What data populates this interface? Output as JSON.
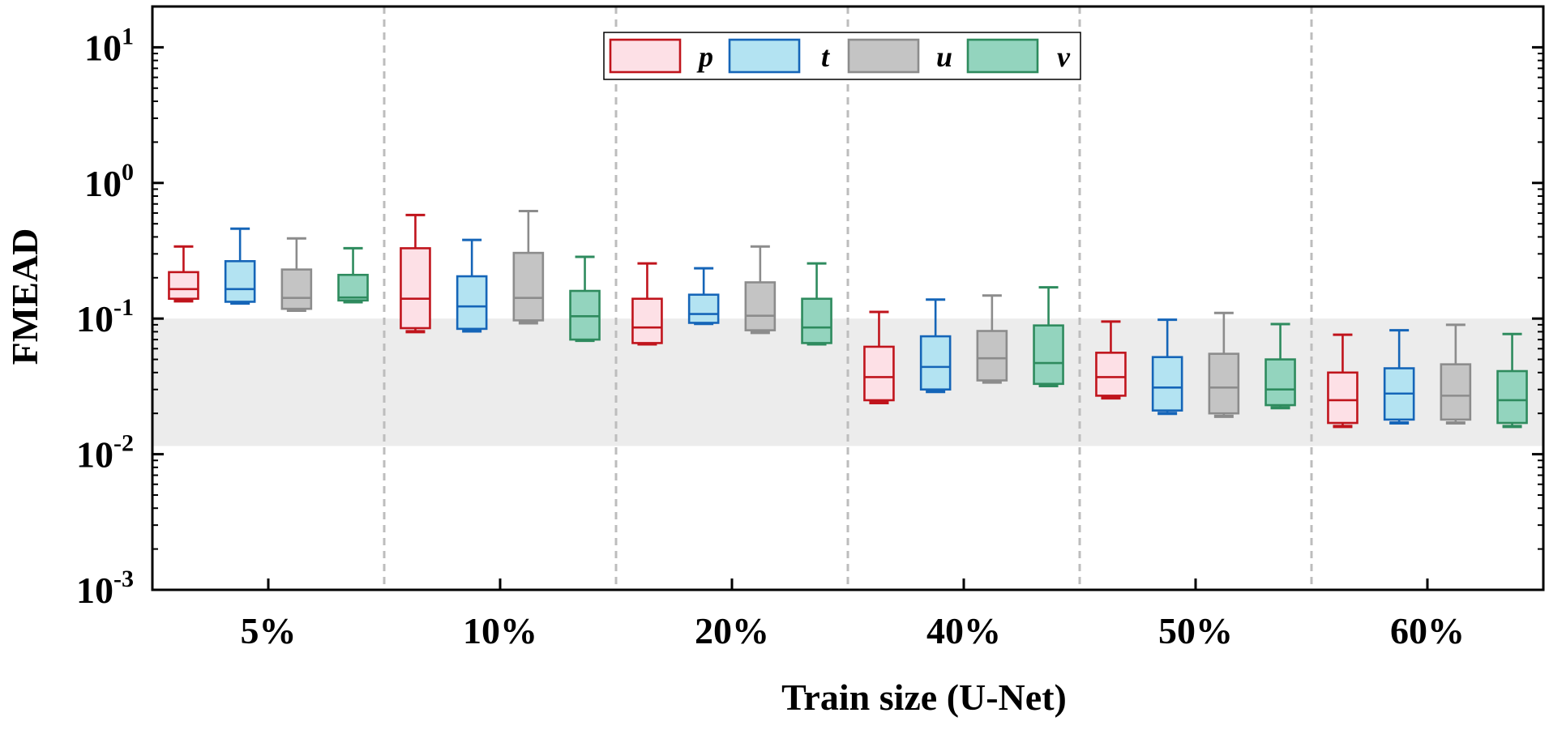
{
  "chart_data": {
    "type": "box",
    "xlabel": "Train size (U-Net)",
    "ylabel": "FMEAD",
    "yscale": "log",
    "ylim": [
      0.001,
      20
    ],
    "ytick_exponents": [
      "1",
      "0",
      "-1",
      "-2",
      "-3"
    ],
    "ytick_base": "10",
    "categories": [
      "5%",
      "10%",
      "20%",
      "40%",
      "50%",
      "60%"
    ],
    "shaded_band": [
      0.0115,
      0.1
    ],
    "category_separators": "dashed",
    "legend": {
      "placement": "top-center"
    },
    "series": [
      {
        "name": "p",
        "edge": "#c0141c",
        "fill": "#fde0e6",
        "boxes": [
          {
            "min": 0.135,
            "q1": 0.14,
            "median": 0.165,
            "q3": 0.22,
            "max": 0.34
          },
          {
            "min": 0.08,
            "q1": 0.085,
            "median": 0.14,
            "q3": 0.33,
            "max": 0.58
          },
          {
            "min": 0.065,
            "q1": 0.066,
            "median": 0.086,
            "q3": 0.14,
            "max": 0.255
          },
          {
            "min": 0.024,
            "q1": 0.025,
            "median": 0.037,
            "q3": 0.062,
            "max": 0.112
          },
          {
            "min": 0.026,
            "q1": 0.027,
            "median": 0.037,
            "q3": 0.056,
            "max": 0.095
          },
          {
            "min": 0.016,
            "q1": 0.017,
            "median": 0.025,
            "q3": 0.04,
            "max": 0.076
          }
        ]
      },
      {
        "name": "t",
        "edge": "#1565b8",
        "fill": "#b3e3f2",
        "boxes": [
          {
            "min": 0.13,
            "q1": 0.133,
            "median": 0.165,
            "q3": 0.265,
            "max": 0.46
          },
          {
            "min": 0.081,
            "q1": 0.084,
            "median": 0.123,
            "q3": 0.205,
            "max": 0.38
          },
          {
            "min": 0.092,
            "q1": 0.093,
            "median": 0.108,
            "q3": 0.15,
            "max": 0.235
          },
          {
            "min": 0.029,
            "q1": 0.03,
            "median": 0.044,
            "q3": 0.074,
            "max": 0.138
          },
          {
            "min": 0.02,
            "q1": 0.021,
            "median": 0.031,
            "q3": 0.052,
            "max": 0.098
          },
          {
            "min": 0.017,
            "q1": 0.018,
            "median": 0.028,
            "q3": 0.043,
            "max": 0.082
          }
        ]
      },
      {
        "name": "u",
        "edge": "#8c8c8c",
        "fill": "#c4c4c4",
        "boxes": [
          {
            "min": 0.115,
            "q1": 0.118,
            "median": 0.142,
            "q3": 0.23,
            "max": 0.39
          },
          {
            "min": 0.093,
            "q1": 0.097,
            "median": 0.142,
            "q3": 0.305,
            "max": 0.62
          },
          {
            "min": 0.079,
            "q1": 0.082,
            "median": 0.105,
            "q3": 0.185,
            "max": 0.34
          },
          {
            "min": 0.034,
            "q1": 0.035,
            "median": 0.051,
            "q3": 0.081,
            "max": 0.148
          },
          {
            "min": 0.019,
            "q1": 0.02,
            "median": 0.031,
            "q3": 0.055,
            "max": 0.11
          },
          {
            "min": 0.017,
            "q1": 0.018,
            "median": 0.027,
            "q3": 0.046,
            "max": 0.09
          }
        ]
      },
      {
        "name": "v",
        "edge": "#2e8b5e",
        "fill": "#93d4be",
        "boxes": [
          {
            "min": 0.133,
            "q1": 0.136,
            "median": 0.143,
            "q3": 0.21,
            "max": 0.33
          },
          {
            "min": 0.069,
            "q1": 0.07,
            "median": 0.104,
            "q3": 0.16,
            "max": 0.285
          },
          {
            "min": 0.065,
            "q1": 0.066,
            "median": 0.086,
            "q3": 0.14,
            "max": 0.255
          },
          {
            "min": 0.032,
            "q1": 0.033,
            "median": 0.047,
            "q3": 0.089,
            "max": 0.17
          },
          {
            "min": 0.022,
            "q1": 0.023,
            "median": 0.03,
            "q3": 0.05,
            "max": 0.091
          },
          {
            "min": 0.016,
            "q1": 0.017,
            "median": 0.025,
            "q3": 0.041,
            "max": 0.077
          }
        ]
      }
    ]
  }
}
